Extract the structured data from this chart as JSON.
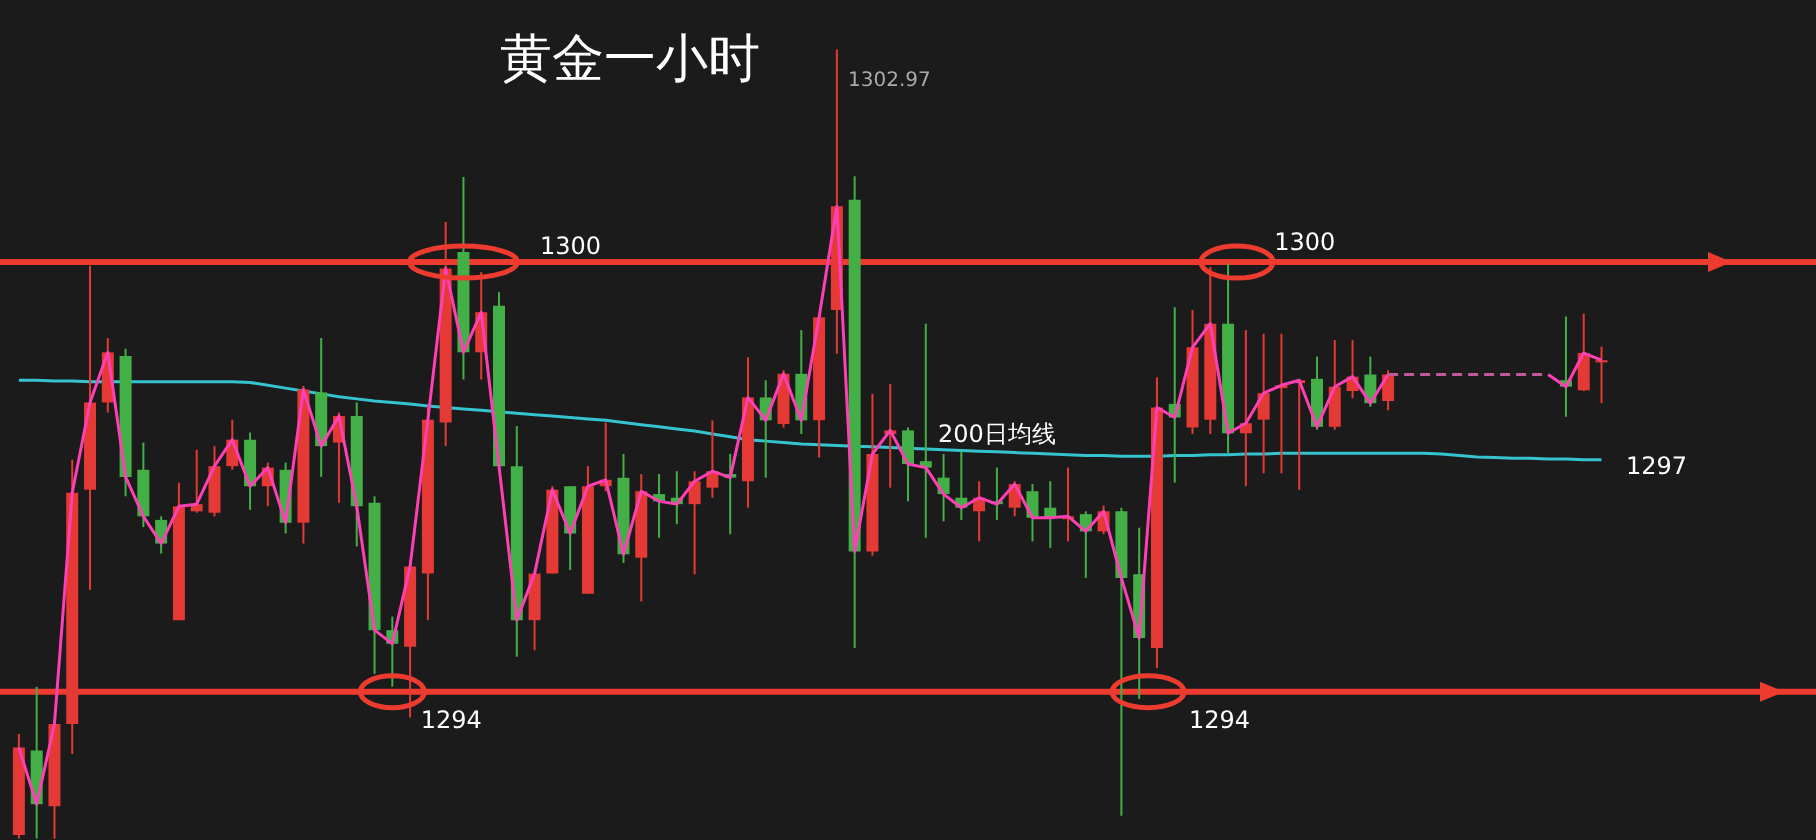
{
  "chart_data": {
    "type": "candlestick",
    "title": "黄金一小时",
    "categories": [
      null,
      null,
      null,
      null,
      null,
      null,
      null,
      null,
      null,
      null,
      null,
      null,
      null,
      null,
      null,
      null,
      null,
      null,
      null,
      null,
      null,
      null,
      null,
      null,
      null,
      null,
      null,
      null,
      null,
      null,
      null,
      null,
      null,
      null,
      null,
      null,
      null,
      null,
      null,
      null,
      null,
      null,
      null,
      null,
      null,
      null,
      null,
      null,
      null,
      null,
      null,
      null,
      null,
      null,
      null,
      null,
      null,
      null,
      null,
      null,
      null,
      null,
      null,
      null,
      null,
      null,
      null,
      null,
      null,
      null,
      null,
      null,
      null,
      null,
      null,
      null,
      null,
      null,
      null,
      null,
      null,
      null,
      null,
      null,
      null,
      null,
      null,
      null,
      null,
      null,
      null,
      null,
      null,
      null,
      null,
      null,
      null,
      null,
      null,
      null,
      null
    ],
    "ohlc": [
      [
        1292.0,
        1293.41,
        1291.95,
        1293.22
      ],
      [
        1293.18,
        1294.07,
        1291.95,
        1292.43
      ],
      [
        1292.4,
        1293.6,
        1291.95,
        1293.55
      ],
      [
        1293.55,
        1297.24,
        1293.13,
        1296.78
      ],
      [
        1296.82,
        1299.95,
        1295.42,
        1298.04
      ],
      [
        1298.04,
        1298.94,
        1297.9,
        1298.74
      ],
      [
        1298.69,
        1298.79,
        1296.73,
        1297.0
      ],
      [
        1297.1,
        1297.48,
        1296.3,
        1296.45
      ],
      [
        1296.4,
        1296.45,
        1295.93,
        1296.07
      ],
      [
        1295.0,
        1296.92,
        1295.0,
        1296.59
      ],
      [
        1296.52,
        1297.38,
        1296.5,
        1296.62
      ],
      [
        1296.5,
        1297.43,
        1296.45,
        1297.15
      ],
      [
        1297.15,
        1297.8,
        1297.1,
        1297.52
      ],
      [
        1297.52,
        1297.62,
        1296.54,
        1296.87
      ],
      [
        1296.87,
        1297.2,
        1296.59,
        1297.13
      ],
      [
        1297.1,
        1297.2,
        1296.21,
        1296.36
      ],
      [
        1296.36,
        1298.27,
        1296.07,
        1298.22
      ],
      [
        1298.18,
        1298.94,
        1297.0,
        1297.43
      ],
      [
        1297.48,
        1297.9,
        1296.64,
        1297.85
      ],
      [
        1297.85,
        1298.04,
        1296.03,
        1296.59
      ],
      [
        1296.64,
        1296.73,
        1294.25,
        1294.86
      ],
      [
        1294.86,
        1295.05,
        1294.07,
        1294.67
      ],
      [
        1294.63,
        1295.84,
        1293.64,
        1295.75
      ],
      [
        1295.65,
        1297.99,
        1295.0,
        1297.8
      ],
      [
        1297.76,
        1300.56,
        1297.43,
        1299.91
      ],
      [
        1300.14,
        1301.19,
        1298.36,
        1298.74
      ],
      [
        1298.74,
        1299.86,
        1298.36,
        1299.3
      ],
      [
        1299.39,
        1299.58,
        1297.15,
        1297.15
      ],
      [
        1297.15,
        1297.71,
        1294.49,
        1295.0
      ],
      [
        1295.0,
        1295.65,
        1294.58,
        1295.65
      ],
      [
        1295.65,
        1296.87,
        1295.65,
        1296.82
      ],
      [
        1296.87,
        1296.87,
        1295.7,
        1296.21
      ],
      [
        1295.37,
        1297.15,
        1295.37,
        1296.87
      ],
      [
        1296.87,
        1297.76,
        1296.8,
        1296.96
      ],
      [
        1296.99,
        1297.32,
        1295.8,
        1295.92
      ],
      [
        1295.87,
        1297.04,
        1295.26,
        1296.8
      ],
      [
        1296.76,
        1297.04,
        1296.15,
        1296.66
      ],
      [
        1296.71,
        1297.08,
        1296.34,
        1296.62
      ],
      [
        1296.62,
        1297.08,
        1295.64,
        1296.94
      ],
      [
        1296.85,
        1297.79,
        1296.71,
        1297.08
      ],
      [
        1297.04,
        1297.32,
        1296.2,
        1296.99
      ],
      [
        1296.94,
        1298.67,
        1296.57,
        1298.11
      ],
      [
        1298.11,
        1298.35,
        1296.99,
        1297.79
      ],
      [
        1297.74,
        1298.49,
        1297.69,
        1298.44
      ],
      [
        1298.44,
        1299.05,
        1297.6,
        1297.79
      ],
      [
        1297.79,
        1299.23,
        1297.27,
        1299.23
      ],
      [
        1299.33,
        1302.97,
        1298.72,
        1300.78
      ],
      [
        1300.87,
        1301.2,
        1294.61,
        1295.96
      ],
      [
        1295.96,
        1298.16,
        1295.9,
        1297.32
      ],
      [
        1297.6,
        1298.3,
        1296.85,
        1297.65
      ],
      [
        1297.65,
        1297.69,
        1296.66,
        1297.18
      ],
      [
        1297.22,
        1299.14,
        1296.15,
        1297.13
      ],
      [
        1296.99,
        1297.32,
        1296.38,
        1296.76
      ],
      [
        1296.71,
        1297.36,
        1296.4,
        1296.57
      ],
      [
        1296.52,
        1296.94,
        1296.1,
        1296.71
      ],
      [
        1296.66,
        1297.13,
        1296.4,
        1296.62
      ],
      [
        1296.57,
        1296.94,
        1296.45,
        1296.9
      ],
      [
        1296.8,
        1296.9,
        1296.1,
        1296.43
      ],
      [
        1296.57,
        1296.94,
        1296.01,
        1296.43
      ],
      [
        1296.41,
        1297.13,
        1296.1,
        1296.45
      ],
      [
        1296.48,
        1296.52,
        1295.59,
        1296.24
      ],
      [
        1296.24,
        1296.6,
        1296.2,
        1296.52
      ],
      [
        1296.52,
        1296.57,
        1292.27,
        1295.59
      ],
      [
        1295.64,
        1296.29,
        1293.9,
        1294.75
      ],
      [
        1294.61,
        1298.39,
        1294.33,
        1297.97
      ],
      [
        1298.02,
        1299.37,
        1296.92,
        1297.83
      ],
      [
        1297.69,
        1299.33,
        1297.6,
        1298.81
      ],
      [
        1297.8,
        1299.93,
        1297.6,
        1299.14
      ],
      [
        1299.14,
        1299.98,
        1297.33,
        1297.61
      ],
      [
        1297.61,
        1299.05,
        1296.87,
        1297.75
      ],
      [
        1297.8,
        1299.0,
        1297.05,
        1298.17
      ],
      [
        1298.24,
        1299.0,
        1297.05,
        1298.28
      ],
      [
        1298.31,
        1298.35,
        1296.82,
        1298.35
      ],
      [
        1298.37,
        1298.68,
        1297.66,
        1297.7
      ],
      [
        1297.7,
        1298.91,
        1297.66,
        1298.26
      ],
      [
        1298.2,
        1298.91,
        1298.1,
        1298.4
      ],
      [
        1298.43,
        1298.68,
        1297.98,
        1298.03
      ],
      [
        1298.06,
        1298.49,
        1297.93,
        1298.43
      ],
      null,
      null,
      null,
      null,
      null,
      null,
      null,
      null,
      null,
      [
        1298.35,
        1299.24,
        1297.84,
        1298.26
      ],
      [
        1298.21,
        1299.28,
        1298.2,
        1298.73
      ],
      [
        1298.6,
        1298.82,
        1298.03,
        1298.63
      ],
      null,
      null,
      null,
      null,
      null,
      null,
      null,
      null,
      null,
      null,
      null
    ],
    "colors": [
      "#e53935",
      "#43b047",
      "#e53935",
      "#e53935",
      "#e53935",
      "#e53935",
      "#43b047",
      "#43b047",
      "#43b047",
      "#e53935",
      "#e53935",
      "#e53935",
      "#e53935",
      "#43b047",
      "#e53935",
      "#43b047",
      "#e53935",
      "#43b047",
      "#e53935",
      "#43b047",
      "#43b047",
      "#43b047",
      "#e53935",
      "#e53935",
      "#e53935",
      "#43b047",
      "#e53935",
      "#43b047",
      "#43b047",
      "#e53935",
      "#e53935",
      "#43b047",
      "#e53935",
      "#e53935",
      "#43b047",
      "#e53935",
      "#43b047",
      "#43b047",
      "#e53935",
      "#e53935",
      "#43b047",
      "#e53935",
      "#43b047",
      "#e53935",
      "#43b047",
      "#e53935",
      "#e53935",
      "#43b047",
      "#e53935",
      "#e53935",
      "#43b047",
      "#43b047",
      "#43b047",
      "#43b047",
      "#e53935",
      "#43b047",
      "#e53935",
      "#43b047",
      "#43b047",
      "#e53935",
      "#43b047",
      "#e53935",
      "#43b047",
      "#43b047",
      "#e53935",
      "#43b047",
      "#e53935",
      "#e53935",
      "#43b047",
      "#e53935",
      "#e53935",
      "#e53935",
      "#e53935",
      "#43b047",
      "#e53935",
      "#e53935",
      "#43b047",
      "#e53935",
      null,
      null,
      null,
      null,
      null,
      null,
      null,
      null,
      null,
      "#43b047",
      "#e53935",
      "#e53935",
      null,
      null,
      null,
      null,
      null,
      null,
      null,
      null,
      null,
      null,
      null
    ],
    "series": [
      {
        "type": "line",
        "name": "200日均线",
        "color": "#35c4cf",
        "values": [
          1298.35,
          1298.35,
          1298.34,
          1298.34,
          1298.33,
          1298.33,
          1298.33,
          1298.33,
          1298.33,
          1298.33,
          1298.33,
          1298.33,
          1298.33,
          1298.32,
          1298.28,
          1298.24,
          1298.2,
          1298.16,
          1298.12,
          1298.09,
          1298.06,
          1298.04,
          1298.02,
          1297.99,
          1297.97,
          1297.95,
          1297.93,
          1297.91,
          1297.89,
          1297.87,
          1297.85,
          1297.83,
          1297.81,
          1297.79,
          1297.76,
          1297.73,
          1297.7,
          1297.67,
          1297.64,
          1297.6,
          1297.56,
          1297.52,
          1297.5,
          1297.48,
          1297.46,
          1297.45,
          1297.44,
          1297.43,
          1297.42,
          1297.41,
          1297.4,
          1297.39,
          1297.38,
          1297.37,
          1297.36,
          1297.35,
          1297.34,
          1297.33,
          1297.32,
          1297.31,
          1297.3,
          1297.3,
          1297.29,
          1297.29,
          1297.29,
          1297.3,
          1297.3,
          1297.31,
          1297.31,
          1297.32,
          1297.32,
          1297.33,
          1297.33,
          1297.33,
          1297.33,
          1297.33,
          1297.33,
          1297.33,
          1297.33,
          1297.33,
          1297.32,
          1297.3,
          1297.28,
          1297.27,
          1297.26,
          1297.26,
          1297.25,
          1297.25,
          1297.24,
          1297.24,
          null,
          null,
          null,
          null,
          null,
          null,
          null,
          null,
          null,
          null,
          null
        ]
      },
      {
        "type": "line",
        "color": "#ff3fb4",
        "values": [
          1293.22,
          1292.43,
          1293.55,
          1296.78,
          1298.04,
          1298.74,
          1297.0,
          1296.45,
          1296.07,
          1296.59,
          1296.62,
          1297.15,
          1297.52,
          1296.87,
          1297.13,
          1296.36,
          1298.22,
          1297.43,
          1297.85,
          1296.59,
          1294.86,
          1294.67,
          1295.75,
          1297.8,
          1299.91,
          1298.74,
          1299.3,
          1297.15,
          1295.0,
          1295.65,
          1296.82,
          1296.21,
          1296.87,
          1296.96,
          1295.92,
          1296.8,
          1296.66,
          1296.62,
          1296.94,
          1297.08,
          1296.99,
          1298.11,
          1297.79,
          1298.44,
          1297.79,
          1299.23,
          1300.78,
          1295.96,
          1297.32,
          1297.65,
          1297.18,
          1297.13,
          1296.76,
          1296.57,
          1296.71,
          1296.62,
          1296.9,
          1296.43,
          1296.43,
          1296.45,
          1296.24,
          1296.52,
          1295.59,
          1294.75,
          1297.97,
          1297.83,
          1298.81,
          1299.14,
          1297.61,
          1297.75,
          1298.17,
          1298.28,
          1298.35,
          1297.7,
          1298.26,
          1298.4,
          1298.03,
          1298.43,
          null,
          null,
          null,
          null,
          null,
          null,
          null,
          null,
          1298.43,
          1298.26,
          1298.73,
          1298.63,
          null,
          null,
          null,
          null,
          null,
          null,
          null,
          null,
          null,
          null,
          null
        ]
      },
      {
        "type": "line",
        "color": "#c0589a",
        "line_style": "dashed",
        "values": [
          null,
          null,
          null,
          null,
          null,
          null,
          null,
          null,
          null,
          null,
          null,
          null,
          null,
          null,
          null,
          null,
          null,
          null,
          null,
          null,
          null,
          null,
          null,
          null,
          null,
          null,
          null,
          null,
          null,
          null,
          null,
          null,
          null,
          null,
          null,
          null,
          null,
          null,
          null,
          null,
          null,
          null,
          null,
          null,
          null,
          null,
          null,
          null,
          null,
          null,
          null,
          null,
          null,
          null,
          null,
          null,
          null,
          null,
          null,
          null,
          null,
          null,
          null,
          null,
          null,
          null,
          null,
          null,
          null,
          null,
          null,
          null,
          null,
          null,
          null,
          null,
          null,
          1298.43,
          1298.43,
          1298.43,
          1298.43,
          1298.43,
          1298.43,
          1298.43,
          1298.43,
          1298.43,
          1298.43,
          null,
          null,
          null,
          null,
          null,
          null,
          null,
          null,
          null,
          null,
          null,
          null,
          null,
          null
        ]
      }
    ],
    "ylim": [
      1291.93,
      1303.66
    ],
    "tick_labels": false,
    "ref_lines": [
      {
        "axis": "y",
        "value": 1300,
        "label": "1300",
        "color": "#ee3b30"
      },
      {
        "axis": "y",
        "value": 1294,
        "label": "1294",
        "color": "#ee3b30"
      }
    ],
    "annotations": [
      {
        "text": "1300",
        "y": 1300
      },
      {
        "text": "1294",
        "y": 1294
      },
      "1297",
      "1302.97"
    ]
  }
}
